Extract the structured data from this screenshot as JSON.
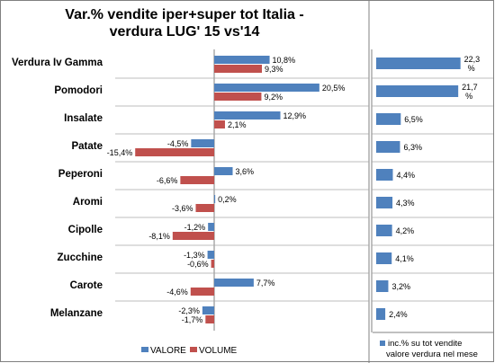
{
  "title": {
    "line1": "Var.%  vendite iper+super  tot Italia  -",
    "line2": "verdura LUG' 15 vs'14"
  },
  "legend": {
    "valore": "VALORE",
    "volume": "VOLUME",
    "incidence_line1": "inc.% su tot vendite",
    "incidence_line2": "valore verdura nel mese"
  },
  "colors": {
    "valore": "#4F81BD",
    "volume": "#C0504D",
    "grid": "#A6A6A6",
    "axis": "#808080"
  },
  "chart_data": [
    {
      "type": "bar",
      "orientation": "horizontal",
      "categories": [
        "Verdura Iv Gamma",
        "Pomodori",
        "Insalate",
        "Patate",
        "Peperoni",
        "Aromi",
        "Cipolle",
        "Zucchine",
        "Carote",
        "Melanzane"
      ],
      "series": [
        {
          "name": "VALORE",
          "values": [
            10.8,
            20.5,
            12.9,
            -4.5,
            3.6,
            0.2,
            -1.2,
            -1.3,
            7.7,
            -2.3
          ],
          "labels": [
            "10,8%",
            "20,5%",
            "12,9%",
            "-4,5%",
            "3,6%",
            "0,2%",
            "-1,2%",
            "-1,3%",
            "7,7%",
            "-2,3%"
          ]
        },
        {
          "name": "VOLUME",
          "values": [
            9.3,
            9.2,
            2.1,
            -15.4,
            -6.6,
            -3.6,
            -8.1,
            -0.6,
            -4.6,
            -1.7
          ],
          "labels": [
            "9,3%",
            "9,2%",
            "2,1%",
            "-15,4%",
            "-6,6%",
            "-3,6%",
            "-8,1%",
            "-0,6%",
            "-4,6%",
            "-1,7%"
          ]
        }
      ],
      "legend": "bottom"
    },
    {
      "type": "bar",
      "orientation": "horizontal",
      "categories": [
        "Verdura Iv Gamma",
        "Pomodori",
        "Insalate",
        "Patate",
        "Peperoni",
        "Aromi",
        "Cipolle",
        "Zucchine",
        "Carote",
        "Melanzane"
      ],
      "series": [
        {
          "name": "inc.% su tot vendite valore verdura nel mese",
          "values": [
            22.3,
            21.7,
            6.5,
            6.3,
            4.4,
            4.3,
            4.2,
            4.1,
            3.2,
            2.4
          ],
          "labels": [
            "22,3 %",
            "21,7 %",
            "6,5%",
            "6,3%",
            "4,4%",
            "4,3%",
            "4,2%",
            "4,1%",
            "3,2%",
            "2,4%"
          ]
        }
      ],
      "legend": "bottom"
    }
  ]
}
